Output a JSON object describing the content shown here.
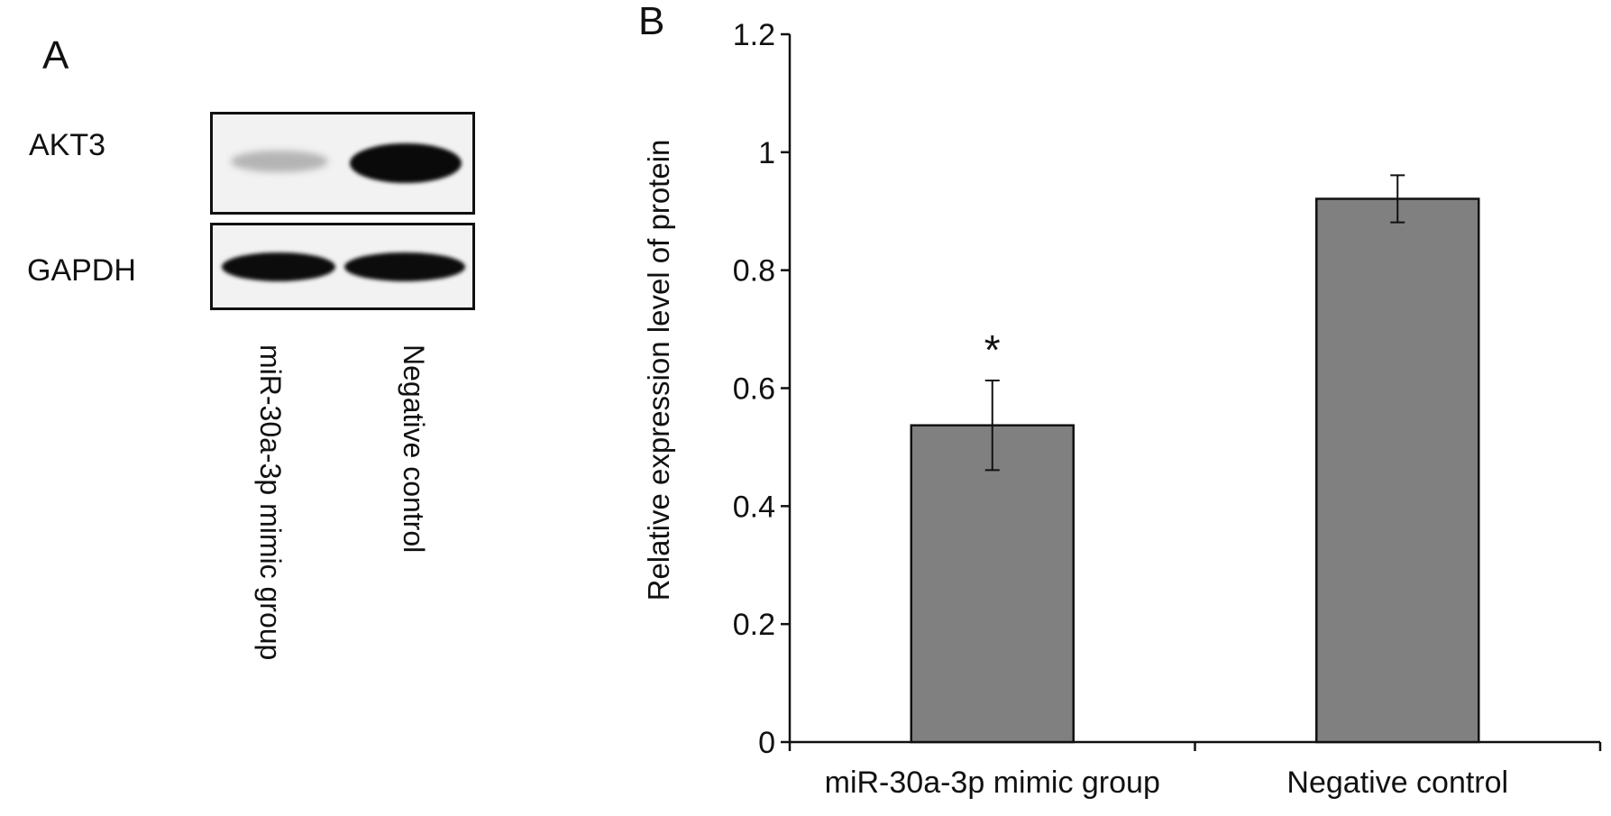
{
  "panels": {
    "a_label": "A",
    "b_label": "B"
  },
  "blot": {
    "rows": [
      {
        "label": "AKT3",
        "intensities": [
          0.2,
          1.0
        ]
      },
      {
        "label": "GAPDH",
        "intensities": [
          1.0,
          1.0
        ]
      }
    ],
    "lanes": [
      "miR-30a-3p mimic group",
      "Negative control"
    ]
  },
  "colors": {
    "bar_fill": "#808080",
    "ink": "#111111"
  },
  "chart_data": {
    "type": "bar",
    "categories": [
      "miR-30a-3p mimic group",
      "Negative control"
    ],
    "values": [
      0.537,
      0.921
    ],
    "error": [
      0.076,
      0.04
    ],
    "annotations": [
      "*",
      ""
    ],
    "ylabel": "Relative expression level of protein",
    "xlabel": "",
    "ylim": [
      0,
      1.2
    ],
    "yticks": [
      "0",
      "0.2",
      "0.4",
      "0.6",
      "0.8",
      "1",
      "1.2"
    ],
    "grid": false
  }
}
